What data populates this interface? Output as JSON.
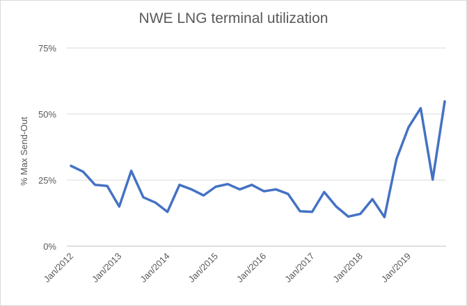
{
  "chart_data": {
    "type": "line",
    "title": "NWE LNG terminal utilization",
    "xlabel": "",
    "ylabel": "% Max Send-Out",
    "ylim": [
      0,
      75
    ],
    "y_ticks": [
      "0%",
      "25%",
      "50%",
      "75%"
    ],
    "y_tick_values": [
      0,
      25,
      50,
      75
    ],
    "x_ticks": [
      "Jan/2012",
      "Jan/2013",
      "Jan/2014",
      "Jan/2015",
      "Jan/2016",
      "Jan/2017",
      "Jan/2018",
      "Jan/2019"
    ],
    "grid": "horizontal",
    "legend": "none",
    "series": [
      {
        "color": "#4472c4",
        "x": [
          "Jan/2012",
          "Apr/2012",
          "Jul/2012",
          "Oct/2012",
          "Jan/2013",
          "Apr/2013",
          "Jul/2013",
          "Oct/2013",
          "Jan/2014",
          "Apr/2014",
          "Jul/2014",
          "Oct/2014",
          "Jan/2015",
          "Apr/2015",
          "Jul/2015",
          "Oct/2015",
          "Jan/2016",
          "Apr/2016",
          "Jul/2016",
          "Oct/2016",
          "Jan/2017",
          "Apr/2017",
          "Jul/2017",
          "Oct/2017",
          "Jan/2018",
          "Apr/2018",
          "Jul/2018",
          "Oct/2018",
          "Jan/2019",
          "Apr/2019",
          "Jul/2019",
          "Oct/2019"
        ],
        "values": [
          30.4,
          28.2,
          23.2,
          22.8,
          15.0,
          28.5,
          18.5,
          16.5,
          13.0,
          23.2,
          21.5,
          19.2,
          22.5,
          23.5,
          21.5,
          23.2,
          20.8,
          21.5,
          19.8,
          13.2,
          13.0,
          20.5,
          15.0,
          11.2,
          12.2,
          17.8,
          11.0,
          33.0,
          45.0,
          52.2,
          25.2,
          54.8
        ]
      }
    ]
  }
}
